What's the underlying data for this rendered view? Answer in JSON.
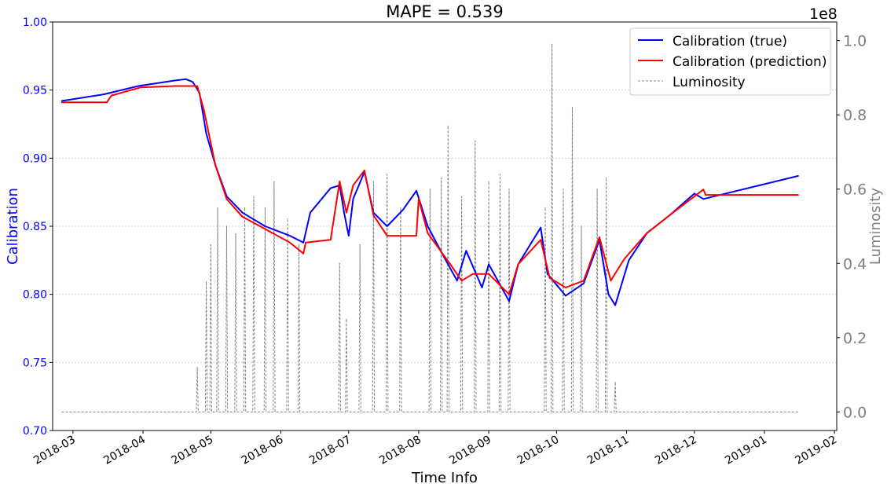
{
  "chart_data": {
    "type": "line",
    "title": "MAPE = 0.539",
    "xlabel": "Time Info",
    "ylabel_left": "Calibration",
    "ylabel_right": "Luminosity",
    "right_axis_multiplier": "1e8",
    "x_range": [
      "2018-02-20",
      "2019-02-02"
    ],
    "ylim_left": [
      0.7,
      1.0
    ],
    "ylim_right": [
      -0.05,
      1.05
    ],
    "x_ticks": [
      "2018-03",
      "2018-04",
      "2018-05",
      "2018-06",
      "2018-07",
      "2018-08",
      "2018-09",
      "2018-10",
      "2018-11",
      "2018-12",
      "2019-01",
      "2019-02"
    ],
    "y_ticks_left": [
      "0.70",
      "0.75",
      "0.80",
      "0.85",
      "0.90",
      "0.95",
      "1.00"
    ],
    "y_ticks_right": [
      "0.0",
      "0.2",
      "0.4",
      "0.6",
      "0.8",
      "1.0"
    ],
    "legend_position": "top-right",
    "grid": "horizontal dotted",
    "colors": {
      "true": "#0000ff",
      "prediction": "#ff0000",
      "luminosity": "#808080",
      "left_axis": "#0000ff",
      "right_axis": "#808080"
    },
    "series": [
      {
        "name": "Calibration (true)",
        "axis": "left",
        "points": [
          [
            "2018-02-24",
            0.942
          ],
          [
            "2018-03-15",
            0.947
          ],
          [
            "2018-03-20",
            0.949
          ],
          [
            "2018-03-30",
            0.953
          ],
          [
            "2018-04-15",
            0.957
          ],
          [
            "2018-04-20",
            0.958
          ],
          [
            "2018-04-23",
            0.956
          ],
          [
            "2018-04-26",
            0.948
          ],
          [
            "2018-04-29",
            0.918
          ],
          [
            "2018-05-03",
            0.895
          ],
          [
            "2018-05-08",
            0.872
          ],
          [
            "2018-05-15",
            0.86
          ],
          [
            "2018-05-25",
            0.85
          ],
          [
            "2018-06-05",
            0.843
          ],
          [
            "2018-06-11",
            0.838
          ],
          [
            "2018-06-14",
            0.86
          ],
          [
            "2018-06-23",
            0.878
          ],
          [
            "2018-06-27",
            0.88
          ],
          [
            "2018-06-29",
            0.86
          ],
          [
            "2018-07-01",
            0.843
          ],
          [
            "2018-07-03",
            0.87
          ],
          [
            "2018-07-08",
            0.89
          ],
          [
            "2018-07-12",
            0.86
          ],
          [
            "2018-07-18",
            0.85
          ],
          [
            "2018-07-25",
            0.862
          ],
          [
            "2018-07-31",
            0.876
          ],
          [
            "2018-08-05",
            0.85
          ],
          [
            "2018-08-12",
            0.828
          ],
          [
            "2018-08-18",
            0.81
          ],
          [
            "2018-08-22",
            0.832
          ],
          [
            "2018-08-29",
            0.805
          ],
          [
            "2018-09-01",
            0.822
          ],
          [
            "2018-09-10",
            0.795
          ],
          [
            "2018-09-14",
            0.822
          ],
          [
            "2018-09-24",
            0.849
          ],
          [
            "2018-09-27",
            0.815
          ],
          [
            "2018-10-05",
            0.799
          ],
          [
            "2018-10-13",
            0.808
          ],
          [
            "2018-10-20",
            0.84
          ],
          [
            "2018-10-24",
            0.8
          ],
          [
            "2018-10-27",
            0.792
          ],
          [
            "2018-11-02",
            0.825
          ],
          [
            "2018-11-10",
            0.845
          ],
          [
            "2018-11-20",
            0.858
          ],
          [
            "2018-12-01",
            0.874
          ],
          [
            "2018-12-05",
            0.87
          ],
          [
            "2019-01-16",
            0.887
          ]
        ]
      },
      {
        "name": "Calibration (prediction)",
        "axis": "left",
        "points": [
          [
            "2018-02-24",
            0.941
          ],
          [
            "2018-03-16",
            0.941
          ],
          [
            "2018-03-18",
            0.946
          ],
          [
            "2018-03-31",
            0.952
          ],
          [
            "2018-04-15",
            0.953
          ],
          [
            "2018-04-25",
            0.953
          ],
          [
            "2018-04-28",
            0.935
          ],
          [
            "2018-05-03",
            0.895
          ],
          [
            "2018-05-08",
            0.87
          ],
          [
            "2018-05-15",
            0.857
          ],
          [
            "2018-05-25",
            0.848
          ],
          [
            "2018-06-05",
            0.838
          ],
          [
            "2018-06-11",
            0.83
          ],
          [
            "2018-06-12",
            0.838
          ],
          [
            "2018-06-23",
            0.84
          ],
          [
            "2018-06-27",
            0.883
          ],
          [
            "2018-06-30",
            0.86
          ],
          [
            "2018-07-03",
            0.88
          ],
          [
            "2018-07-08",
            0.891
          ],
          [
            "2018-07-12",
            0.858
          ],
          [
            "2018-07-18",
            0.843
          ],
          [
            "2018-07-31",
            0.843
          ],
          [
            "2018-08-01",
            0.87
          ],
          [
            "2018-08-05",
            0.845
          ],
          [
            "2018-08-15",
            0.822
          ],
          [
            "2018-08-20",
            0.81
          ],
          [
            "2018-08-25",
            0.815
          ],
          [
            "2018-09-01",
            0.815
          ],
          [
            "2018-09-10",
            0.8
          ],
          [
            "2018-09-14",
            0.822
          ],
          [
            "2018-09-24",
            0.84
          ],
          [
            "2018-09-28",
            0.812
          ],
          [
            "2018-10-05",
            0.805
          ],
          [
            "2018-10-13",
            0.81
          ],
          [
            "2018-10-20",
            0.842
          ],
          [
            "2018-10-25",
            0.81
          ],
          [
            "2018-10-31",
            0.826
          ],
          [
            "2018-11-10",
            0.845
          ],
          [
            "2018-11-20",
            0.858
          ],
          [
            "2018-12-05",
            0.877
          ],
          [
            "2018-12-06",
            0.873
          ],
          [
            "2019-01-16",
            0.873
          ]
        ]
      },
      {
        "name": "Luminosity",
        "axis": "right",
        "style": "dashed",
        "spikes": [
          [
            "2018-04-25",
            0.12
          ],
          [
            "2018-04-29",
            0.35
          ],
          [
            "2018-05-01",
            0.45
          ],
          [
            "2018-05-04",
            0.55
          ],
          [
            "2018-05-08",
            0.5
          ],
          [
            "2018-05-12",
            0.48
          ],
          [
            "2018-05-16",
            0.55
          ],
          [
            "2018-05-20",
            0.58
          ],
          [
            "2018-05-25",
            0.55
          ],
          [
            "2018-05-29",
            0.62
          ],
          [
            "2018-06-04",
            0.52
          ],
          [
            "2018-06-09",
            0.45
          ],
          [
            "2018-06-27",
            0.4
          ],
          [
            "2018-06-30",
            0.25
          ],
          [
            "2018-07-06",
            0.45
          ],
          [
            "2018-07-12",
            0.62
          ],
          [
            "2018-07-18",
            0.64
          ],
          [
            "2018-07-24",
            0.55
          ],
          [
            "2018-08-06",
            0.6
          ],
          [
            "2018-08-11",
            0.63
          ],
          [
            "2018-08-14",
            0.77
          ],
          [
            "2018-08-20",
            0.58
          ],
          [
            "2018-08-26",
            0.73
          ],
          [
            "2018-09-01",
            0.62
          ],
          [
            "2018-09-06",
            0.64
          ],
          [
            "2018-09-10",
            0.6
          ],
          [
            "2018-09-26",
            0.55
          ],
          [
            "2018-09-29",
            0.99
          ],
          [
            "2018-10-04",
            0.6
          ],
          [
            "2018-10-08",
            0.82
          ],
          [
            "2018-10-12",
            0.5
          ],
          [
            "2018-10-19",
            0.6
          ],
          [
            "2018-10-23",
            0.63
          ],
          [
            "2018-10-27",
            0.08
          ]
        ]
      }
    ]
  }
}
